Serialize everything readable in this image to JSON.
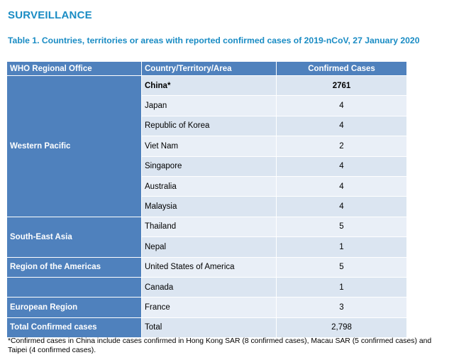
{
  "heading": "SURVEILLANCE",
  "caption": "Table 1. Countries, territories or areas with reported confirmed cases of 2019-nCoV, 27 January 2020",
  "table": {
    "headers": [
      "WHO Regional Office",
      "Country/Territory/Area",
      "Confirmed Cases"
    ],
    "regions": {
      "western_pacific": "Western Pacific",
      "south_east_asia": "South-East Asia",
      "americas": "Region of the Americas",
      "european": "European Region",
      "total": "Total Confirmed cases"
    },
    "rows": [
      {
        "country": "China*",
        "cases": "2761"
      },
      {
        "country": "Japan",
        "cases": "4"
      },
      {
        "country": "Republic of Korea",
        "cases": "4"
      },
      {
        "country": "Viet Nam",
        "cases": "2"
      },
      {
        "country": "Singapore",
        "cases": "4"
      },
      {
        "country": "Australia",
        "cases": "4"
      },
      {
        "country": "Malaysia",
        "cases": "4"
      },
      {
        "country": "Thailand",
        "cases": "5"
      },
      {
        "country": "Nepal",
        "cases": "1"
      },
      {
        "country": "United States of America",
        "cases": "5"
      },
      {
        "country": "Canada",
        "cases": "1"
      },
      {
        "country": "France",
        "cases": "3"
      },
      {
        "country": "Total",
        "cases": "2,798"
      }
    ]
  },
  "footnote": "*Confirmed cases in China include cases confirmed in Hong Kong SAR (8 confirmed cases), Macau SAR (5 confirmed cases) and Taipei (4 confirmed cases).",
  "colors": {
    "heading": "#1a8cc4",
    "header_fill": "#4f81bd",
    "cell_fill": "#dbe5f1"
  }
}
